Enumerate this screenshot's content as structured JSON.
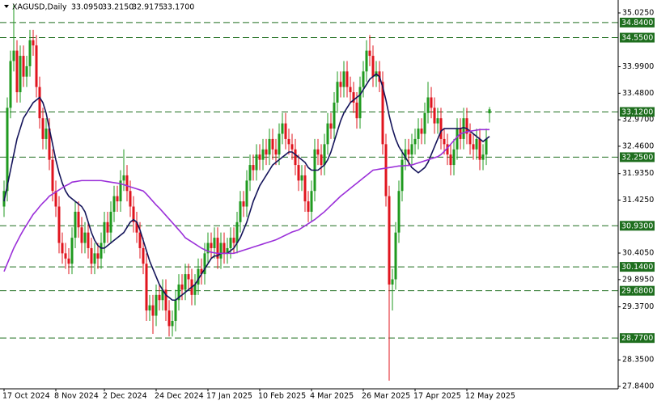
{
  "chart_data": {
    "type": "candlestick",
    "symbol": "XAGUSD,Daily",
    "ohlc_header": [
      "33.0950",
      "33.2150",
      "32.9175",
      "33.1700"
    ],
    "up_color": "#1f9a1f",
    "down_color": "#e0141e",
    "level_color": "#1e6e1e",
    "ylim": [
      27.793,
      35.274
    ],
    "yticks": [
      {
        "value": 35.025,
        "label": "35.0250"
      },
      {
        "value": 33.99,
        "label": "33.9900"
      },
      {
        "value": 33.48,
        "label": "33.4800"
      },
      {
        "value": 32.97,
        "label": "32.9700"
      },
      {
        "value": 32.46,
        "label": "32.4600"
      },
      {
        "value": 31.935,
        "label": "31.9350"
      },
      {
        "value": 31.425,
        "label": "31.4250"
      },
      {
        "value": 30.405,
        "label": "30.4050"
      },
      {
        "value": 29.895,
        "label": "29.8950"
      },
      {
        "value": 29.37,
        "label": "29.3700"
      },
      {
        "value": 28.35,
        "label": "28.3500"
      },
      {
        "value": 27.84,
        "label": "27.8400"
      }
    ],
    "levels": [
      {
        "value": 34.84,
        "label": "34.8400"
      },
      {
        "value": 34.55,
        "label": "34.5500"
      },
      {
        "value": 33.12,
        "label": "33.1200"
      },
      {
        "value": 32.25,
        "label": "32.2500"
      },
      {
        "value": 30.93,
        "label": "30.9300"
      },
      {
        "value": 30.14,
        "label": "30.1400"
      },
      {
        "value": 29.68,
        "label": "29.6800"
      },
      {
        "value": 28.77,
        "label": "28.7700"
      }
    ],
    "categories": [
      "17 Oct 2024",
      null,
      null,
      null,
      null,
      null,
      null,
      null,
      null,
      null,
      null,
      null,
      null,
      null,
      null,
      null,
      "8 Nov 2024",
      null,
      null,
      null,
      null,
      null,
      null,
      null,
      null,
      null,
      null,
      null,
      null,
      null,
      null,
      "2 Dec 2024",
      null,
      null,
      null,
      null,
      null,
      null,
      null,
      null,
      null,
      null,
      null,
      null,
      null,
      null,
      null,
      "24 Dec 2024",
      null,
      null,
      null,
      null,
      null,
      null,
      null,
      null,
      null,
      null,
      null,
      null,
      null,
      null,
      null,
      "17 Jan 2025",
      null,
      null,
      null,
      null,
      null,
      null,
      null,
      null,
      null,
      null,
      null,
      null,
      null,
      null,
      null,
      "10 Feb 2025",
      null,
      null,
      null,
      null,
      null,
      null,
      null,
      null,
      null,
      null,
      null,
      null,
      null,
      null,
      null,
      "4 Mar 2025",
      null,
      null,
      null,
      null,
      null,
      null,
      null,
      null,
      null,
      null,
      null,
      null,
      null,
      null,
      null,
      "26 Mar 2025",
      null,
      null,
      null,
      null,
      null,
      null,
      null,
      null,
      null,
      null,
      null,
      null,
      null,
      null,
      null,
      "17 Apr 2025",
      null,
      null,
      null,
      null,
      null,
      null,
      null,
      null,
      null,
      null,
      null,
      null,
      null,
      null,
      null,
      "12 May 2025",
      null,
      null,
      null,
      null,
      null,
      null,
      null
    ],
    "open": [
      31.3,
      31.6,
      33.2,
      34.1,
      34.3,
      33.5,
      34.2,
      33.8,
      34.0,
      34.5,
      34.4,
      33.6,
      33.0,
      32.6,
      32.8,
      32.2,
      31.6,
      31.3,
      30.6,
      30.4,
      30.3,
      30.2,
      30.7,
      31.2,
      30.9,
      30.6,
      30.8,
      30.5,
      30.2,
      30.4,
      30.3,
      30.6,
      31.0,
      30.8,
      31.2,
      31.5,
      31.4,
      31.8,
      31.9,
      31.6,
      31.3,
      31.0,
      30.8,
      30.5,
      30.2,
      29.3,
      29.4,
      29.2,
      29.6,
      29.5,
      29.7,
      29.3,
      29.0,
      29.1,
      29.5,
      29.8,
      29.7,
      30.0,
      29.9,
      29.6,
      29.8,
      30.1,
      30.0,
      30.4,
      30.6,
      30.5,
      30.7,
      30.3,
      30.6,
      30.4,
      30.5,
      30.7,
      30.6,
      31.0,
      31.4,
      31.3,
      31.8,
      32.1,
      32.0,
      32.3,
      32.2,
      32.4,
      32.3,
      32.6,
      32.4,
      32.3,
      32.7,
      32.9,
      32.6,
      32.5,
      32.4,
      32.1,
      31.8,
      31.9,
      31.4,
      31.2,
      31.6,
      32.4,
      32.3,
      32.1,
      32.5,
      32.9,
      32.8,
      33.3,
      33.7,
      33.6,
      33.9,
      33.6,
      33.5,
      33.3,
      33.0,
      33.6,
      33.9,
      34.3,
      34.2,
      33.8,
      33.9,
      33.7,
      32.5,
      31.5,
      29.8,
      29.9,
      30.8,
      31.6,
      32.2,
      32.4,
      32.3,
      32.5,
      32.6,
      32.8,
      32.7,
      33.1,
      33.4,
      33.2,
      32.9,
      33.0,
      32.6,
      32.5,
      32.3,
      32.1,
      32.4,
      32.8,
      32.6,
      33.0,
      32.7,
      32.5,
      32.4,
      32.6,
      32.2,
      32.3,
      33.095
    ],
    "high": [
      31.8,
      33.4,
      34.3,
      35.2,
      34.5,
      34.4,
      34.4,
      34.2,
      34.7,
      34.7,
      34.6,
      33.8,
      33.2,
      33.0,
      33.0,
      32.4,
      31.8,
      31.5,
      30.8,
      30.6,
      30.5,
      30.9,
      31.4,
      31.4,
      31.1,
      31.0,
      31.0,
      30.7,
      30.6,
      30.6,
      30.8,
      31.2,
      31.2,
      31.4,
      31.7,
      31.7,
      32.0,
      32.4,
      32.1,
      31.8,
      31.5,
      31.2,
      31.0,
      30.7,
      30.4,
      29.6,
      29.6,
      29.8,
      29.8,
      29.9,
      29.9,
      29.5,
      29.3,
      29.7,
      30.0,
      30.0,
      30.2,
      30.2,
      30.1,
      30.0,
      30.3,
      30.3,
      30.6,
      30.8,
      30.8,
      30.9,
      30.9,
      30.8,
      30.8,
      30.7,
      30.9,
      30.9,
      31.2,
      31.6,
      31.6,
      32.0,
      32.3,
      32.3,
      32.5,
      32.5,
      32.6,
      32.6,
      32.8,
      32.8,
      32.6,
      32.9,
      33.1,
      33.1,
      32.8,
      32.7,
      32.6,
      32.3,
      32.1,
      32.1,
      31.6,
      31.8,
      32.6,
      32.6,
      32.5,
      32.7,
      33.1,
      33.1,
      33.5,
      33.9,
      33.9,
      34.1,
      34.1,
      33.8,
      33.7,
      33.5,
      33.8,
      34.1,
      34.5,
      34.6,
      34.4,
      34.1,
      34.1,
      33.9,
      32.7,
      31.7,
      30.1,
      31.0,
      31.8,
      32.4,
      32.6,
      32.6,
      32.7,
      32.8,
      33.0,
      33.0,
      33.3,
      33.7,
      33.6,
      33.4,
      33.2,
      33.2,
      32.8,
      32.7,
      32.5,
      32.6,
      33.0,
      33.0,
      33.2,
      33.2,
      32.9,
      32.7,
      32.8,
      32.8,
      32.5,
      32.8,
      33.215
    ],
    "low": [
      31.1,
      31.4,
      33.0,
      33.9,
      33.3,
      33.3,
      33.6,
      33.6,
      33.8,
      34.2,
      33.4,
      32.8,
      32.4,
      32.4,
      32.0,
      31.4,
      31.1,
      30.4,
      30.2,
      30.1,
      30.0,
      30.0,
      30.5,
      30.7,
      30.4,
      30.4,
      30.3,
      30.0,
      30.0,
      30.1,
      30.1,
      30.4,
      30.6,
      30.6,
      31.0,
      31.2,
      31.2,
      31.6,
      31.4,
      31.1,
      30.8,
      30.6,
      30.3,
      30.0,
      29.1,
      29.1,
      28.85,
      29.0,
      29.3,
      29.3,
      29.1,
      28.8,
      28.8,
      28.9,
      29.3,
      29.5,
      29.5,
      29.7,
      29.4,
      29.4,
      29.6,
      29.8,
      29.8,
      30.2,
      30.3,
      30.3,
      30.1,
      30.1,
      30.2,
      30.2,
      30.3,
      30.4,
      30.4,
      30.8,
      31.1,
      31.1,
      31.6,
      31.8,
      31.8,
      32.0,
      32.0,
      32.1,
      32.1,
      32.2,
      32.1,
      32.1,
      32.5,
      32.4,
      32.3,
      32.2,
      31.9,
      31.6,
      31.6,
      31.2,
      31.0,
      31.0,
      31.4,
      32.1,
      31.9,
      31.9,
      32.3,
      32.6,
      32.6,
      33.1,
      33.4,
      33.4,
      33.4,
      33.3,
      33.1,
      32.8,
      32.8,
      33.4,
      33.7,
      34.0,
      33.6,
      33.6,
      33.5,
      32.3,
      31.3,
      27.95,
      29.3,
      29.7,
      30.6,
      31.4,
      32.0,
      32.1,
      32.1,
      32.3,
      32.4,
      32.5,
      32.5,
      32.9,
      33.0,
      32.7,
      32.7,
      32.4,
      32.3,
      32.1,
      31.9,
      31.9,
      32.2,
      32.4,
      32.4,
      32.5,
      32.3,
      32.2,
      32.2,
      32.0,
      32.0,
      32.1,
      32.9175
    ],
    "close": [
      31.6,
      33.2,
      34.1,
      34.3,
      33.5,
      34.2,
      33.8,
      34.0,
      34.5,
      34.4,
      33.6,
      33.0,
      32.6,
      32.8,
      32.2,
      31.6,
      31.3,
      30.6,
      30.4,
      30.3,
      30.2,
      30.7,
      31.2,
      30.9,
      30.6,
      30.8,
      30.5,
      30.2,
      30.4,
      30.3,
      30.6,
      31.0,
      30.8,
      31.2,
      31.5,
      31.4,
      31.8,
      31.9,
      31.6,
      31.3,
      31.0,
      30.8,
      30.5,
      30.2,
      29.3,
      29.4,
      29.2,
      29.6,
      29.5,
      29.7,
      29.3,
      29.0,
      29.1,
      29.5,
      29.8,
      29.7,
      30.0,
      29.9,
      29.6,
      29.8,
      30.1,
      30.0,
      30.4,
      30.6,
      30.5,
      30.7,
      30.3,
      30.6,
      30.4,
      30.5,
      30.7,
      30.6,
      31.0,
      31.4,
      31.3,
      31.8,
      32.1,
      32.0,
      32.3,
      32.2,
      32.4,
      32.3,
      32.6,
      32.4,
      32.3,
      32.7,
      32.9,
      32.6,
      32.5,
      32.4,
      32.1,
      31.8,
      31.9,
      31.4,
      31.2,
      31.6,
      32.4,
      32.3,
      32.1,
      32.5,
      32.9,
      32.8,
      33.3,
      33.7,
      33.6,
      33.9,
      33.6,
      33.5,
      33.3,
      33.0,
      33.6,
      33.9,
      34.3,
      34.2,
      33.8,
      33.9,
      33.7,
      32.5,
      31.5,
      29.8,
      29.9,
      30.8,
      31.6,
      32.2,
      32.4,
      32.3,
      32.5,
      32.6,
      32.8,
      32.7,
      33.1,
      33.4,
      33.2,
      32.9,
      33.0,
      32.6,
      32.5,
      32.3,
      32.1,
      32.4,
      32.8,
      32.6,
      33.0,
      32.7,
      32.5,
      32.4,
      32.6,
      32.2,
      32.3,
      32.6,
      33.17
    ],
    "series": [
      {
        "color": "#14145a",
        "values": [
          31.4,
          31.7,
          32.0,
          32.3,
          32.6,
          32.8,
          33.0,
          33.1,
          33.2,
          33.3,
          33.35,
          33.4,
          33.3,
          33.1,
          32.8,
          32.5,
          32.2,
          31.95,
          31.75,
          31.6,
          31.5,
          31.45,
          31.4,
          31.35,
          31.3,
          31.2,
          31.0,
          30.8,
          30.65,
          30.55,
          30.5,
          30.5,
          30.55,
          30.6,
          30.65,
          30.7,
          30.75,
          30.8,
          30.9,
          31.0,
          31.05,
          31.0,
          30.85,
          30.65,
          30.45,
          30.25,
          30.1,
          29.95,
          29.8,
          29.7,
          29.6,
          29.55,
          29.5,
          29.5,
          29.55,
          29.6,
          29.65,
          29.7,
          29.75,
          29.8,
          29.9,
          30.0,
          30.1,
          30.2,
          30.3,
          30.35,
          30.35,
          30.4,
          30.4,
          30.4,
          30.45,
          30.5,
          30.6,
          30.7,
          30.85,
          31.0,
          31.2,
          31.4,
          31.55,
          31.7,
          31.8,
          31.9,
          32.0,
          32.1,
          32.15,
          32.2,
          32.25,
          32.3,
          32.35,
          32.35,
          32.3,
          32.25,
          32.2,
          32.15,
          32.05,
          32.0,
          32.0,
          32.0,
          32.05,
          32.1,
          32.2,
          32.35,
          32.55,
          32.75,
          32.95,
          33.1,
          33.2,
          33.3,
          33.35,
          33.4,
          33.45,
          33.55,
          33.65,
          33.75,
          33.8,
          33.85,
          33.8,
          33.6,
          33.35,
          33.05,
          32.8,
          32.6,
          32.45,
          32.35,
          32.25,
          32.15,
          32.05,
          32.0,
          31.95,
          32.0,
          32.05,
          32.15,
          32.3,
          32.45,
          32.6,
          32.75,
          32.8,
          32.8,
          32.8,
          32.8,
          32.8,
          32.8,
          32.82,
          32.8,
          32.75,
          32.7,
          32.65,
          32.6,
          32.55,
          32.6,
          32.65
        ]
      },
      {
        "color": "#9b30d9",
        "values": [
          30.05,
          30.2,
          30.35,
          30.5,
          30.62,
          30.74,
          30.85,
          30.95,
          31.05,
          31.15,
          31.22,
          31.3,
          31.37,
          31.43,
          31.5,
          31.54,
          31.58,
          31.62,
          31.66,
          31.7,
          31.73,
          31.77,
          31.78,
          31.79,
          31.8,
          31.8,
          31.8,
          31.8,
          31.8,
          31.8,
          31.8,
          31.79,
          31.78,
          31.77,
          31.76,
          31.75,
          31.74,
          31.72,
          31.7,
          31.68,
          31.66,
          31.64,
          31.62,
          31.6,
          31.54,
          31.47,
          31.4,
          31.33,
          31.27,
          31.2,
          31.13,
          31.06,
          30.99,
          30.92,
          30.85,
          30.78,
          30.7,
          30.66,
          30.62,
          30.58,
          30.54,
          30.5,
          30.47,
          30.44,
          30.42,
          30.41,
          30.4,
          30.4,
          30.4,
          30.4,
          30.4,
          30.4,
          30.42,
          30.44,
          30.46,
          30.48,
          30.5,
          30.52,
          30.54,
          30.56,
          30.58,
          30.6,
          30.62,
          30.64,
          30.66,
          30.69,
          30.72,
          30.75,
          30.78,
          30.81,
          30.83,
          30.85,
          30.89,
          30.93,
          30.97,
          31.01,
          31.05,
          31.1,
          31.15,
          31.2,
          31.26,
          31.32,
          31.38,
          31.44,
          31.5,
          31.55,
          31.6,
          31.65,
          31.7,
          31.75,
          31.8,
          31.85,
          31.9,
          31.95,
          32.0,
          32.01,
          32.02,
          32.03,
          32.04,
          32.05,
          32.06,
          32.07,
          32.08,
          32.08,
          32.09,
          32.09,
          32.1,
          32.12,
          32.14,
          32.16,
          32.18,
          32.2,
          32.22,
          32.24,
          32.26,
          32.3,
          32.36,
          32.43,
          32.5,
          32.57,
          32.64,
          32.7,
          32.72,
          32.74,
          32.75,
          32.76,
          32.77,
          32.78,
          32.78,
          32.78,
          32.78
        ]
      }
    ]
  }
}
